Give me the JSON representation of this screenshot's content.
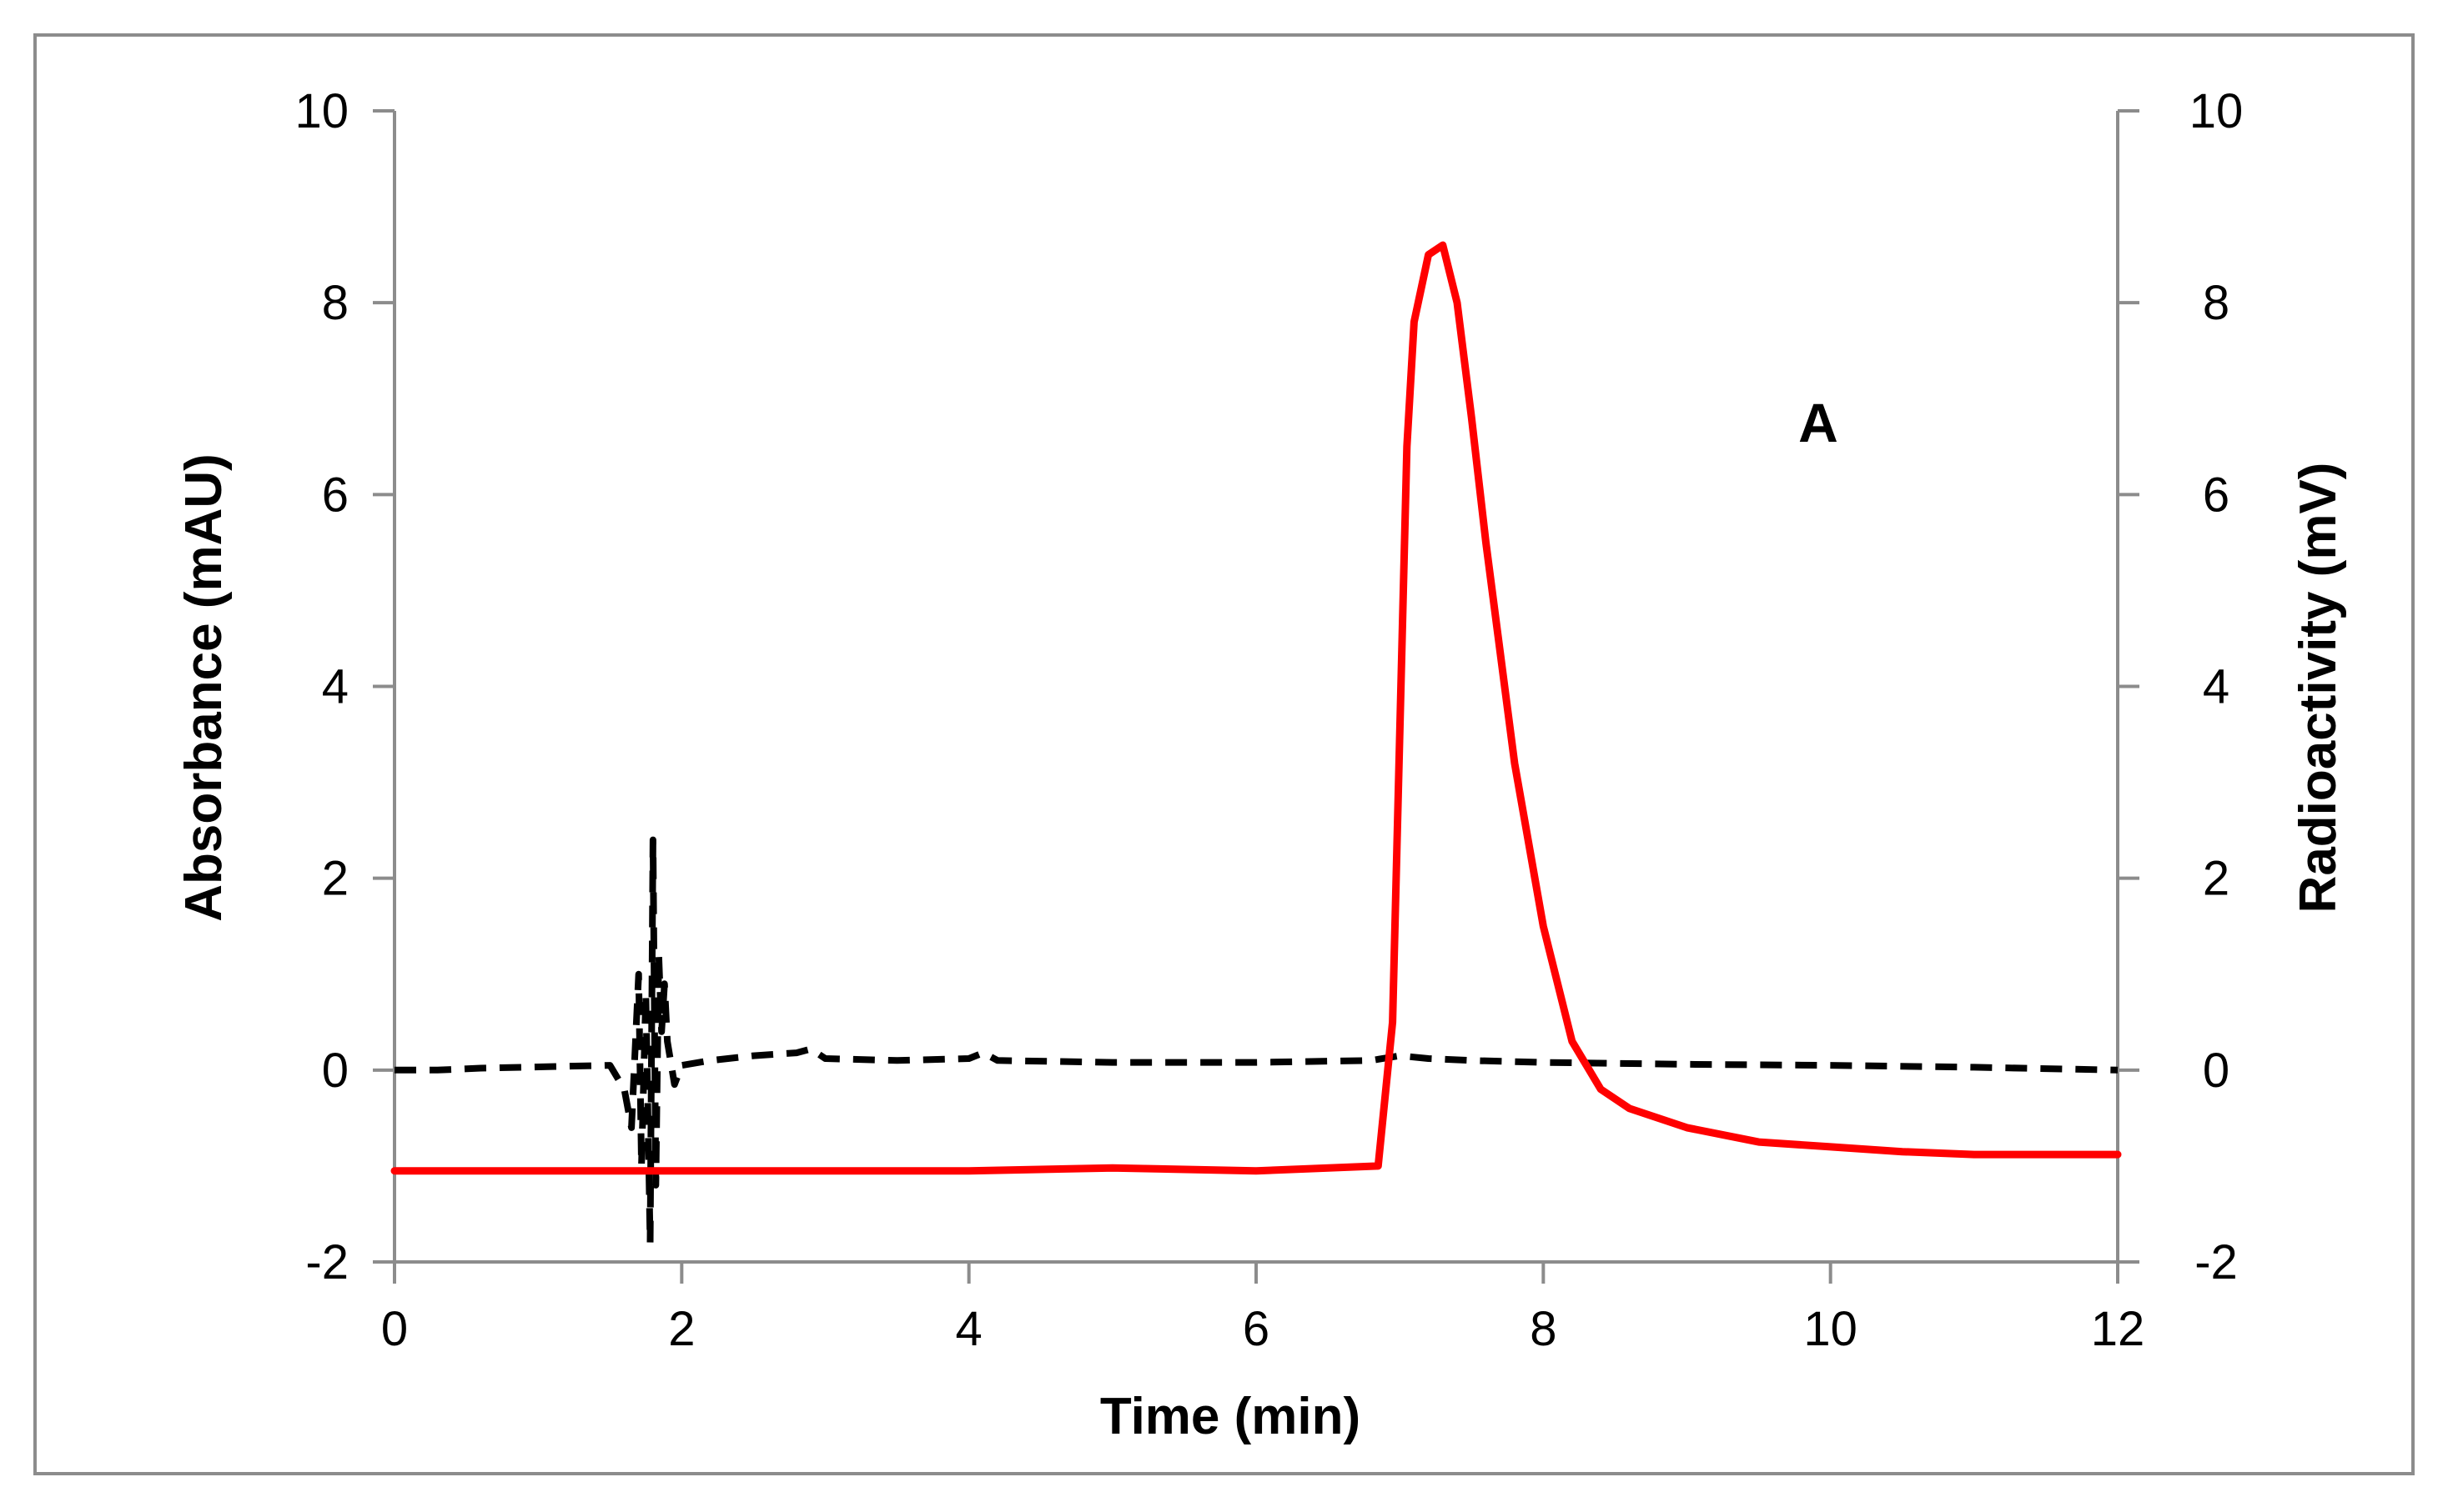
{
  "chart_data": {
    "type": "line",
    "title": "",
    "annotation": "A",
    "xlabel": "Time (min)",
    "ylabel_left": "Absorbance (mAU)",
    "ylabel_right": "Radioactivity (mV)",
    "xlim": [
      0,
      12
    ],
    "ylim_left": [
      -2,
      10
    ],
    "ylim_right": [
      -2,
      10
    ],
    "x_ticks": [
      0,
      2,
      4,
      6,
      8,
      10,
      12
    ],
    "y_ticks": [
      -2,
      0,
      2,
      4,
      6,
      8,
      10
    ],
    "grid": false,
    "series": [
      {
        "name": "Absorbance",
        "axis": "left",
        "style": "dashed",
        "color": "#000000",
        "x": [
          0,
          0.3,
          0.6,
          0.9,
          1.2,
          1.5,
          1.6,
          1.65,
          1.7,
          1.72,
          1.75,
          1.78,
          1.8,
          1.82,
          1.84,
          1.86,
          1.88,
          1.9,
          1.95,
          2.0,
          2.2,
          2.5,
          2.8,
          2.9,
          3.0,
          3.5,
          4.0,
          4.1,
          4.2,
          5.0,
          6.0,
          6.8,
          7.0,
          7.2,
          7.5,
          8.0,
          9.0,
          10.0,
          11.0,
          12.0
        ],
        "y": [
          0.0,
          0.0,
          0.02,
          0.03,
          0.04,
          0.05,
          -0.2,
          -0.6,
          1.0,
          -1.0,
          0.8,
          -1.8,
          2.4,
          -1.2,
          1.2,
          0.4,
          0.9,
          0.3,
          -0.15,
          0.05,
          0.1,
          0.15,
          0.18,
          0.22,
          0.12,
          0.1,
          0.12,
          0.18,
          0.1,
          0.08,
          0.08,
          0.1,
          0.15,
          0.12,
          0.1,
          0.08,
          0.06,
          0.05,
          0.03,
          0.0
        ]
      },
      {
        "name": "Radioactivity",
        "axis": "right",
        "style": "solid",
        "color": "#ff0000",
        "x": [
          0,
          2,
          4,
          5,
          6,
          6.85,
          6.95,
          7.0,
          7.05,
          7.1,
          7.2,
          7.3,
          7.4,
          7.5,
          7.6,
          7.8,
          8.0,
          8.2,
          8.4,
          8.6,
          9.0,
          9.5,
          10.0,
          10.5,
          11.0,
          11.5,
          12.0
        ],
        "y": [
          -1.05,
          -1.05,
          -1.05,
          -1.02,
          -1.05,
          -1.0,
          0.5,
          3.5,
          6.5,
          7.8,
          8.5,
          8.6,
          8.0,
          6.8,
          5.5,
          3.2,
          1.5,
          0.3,
          -0.2,
          -0.4,
          -0.6,
          -0.75,
          -0.8,
          -0.85,
          -0.88,
          -0.88,
          -0.88
        ]
      }
    ]
  }
}
